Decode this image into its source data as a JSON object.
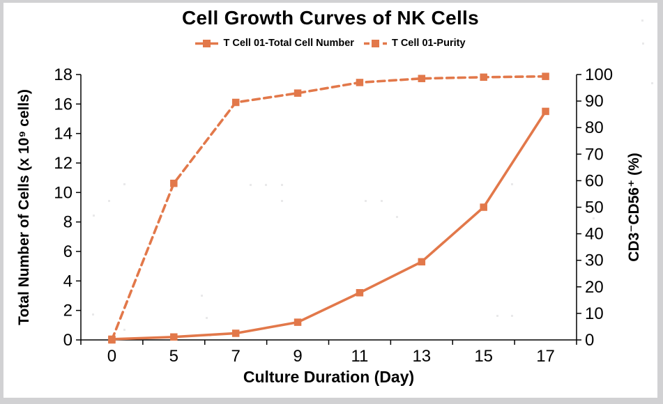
{
  "window": {
    "frame_color": "#d1d1d3",
    "background": "#ffffff"
  },
  "chart_data": {
    "type": "line",
    "title": "Cell Growth Curves of NK Cells",
    "grid": false,
    "legend_position": "top",
    "categories": [
      "0",
      "5",
      "7",
      "9",
      "11",
      "13",
      "15",
      "17"
    ],
    "x_axis": {
      "label": "Culture Duration (Day)",
      "tick_placement": "between-categories"
    },
    "left_axis": {
      "label": "Total Number of Cells (x 10⁹ cells)",
      "min": 0,
      "max": 18,
      "ticks": [
        0,
        2,
        4,
        6,
        8,
        10,
        12,
        14,
        16,
        18
      ]
    },
    "right_axis": {
      "label": "CD3⁻CD56⁺ (%)",
      "min": 0,
      "max": 100,
      "ticks": [
        0,
        10,
        20,
        30,
        40,
        50,
        60,
        70,
        80,
        90,
        100
      ]
    },
    "series": [
      {
        "name": "T Cell 01-Total Cell Number",
        "axis": "left",
        "line_style": "solid",
        "marker": "square",
        "color": "#e2784a",
        "values": [
          0.05,
          0.2,
          0.45,
          1.2,
          3.2,
          5.3,
          9.0,
          15.5
        ]
      },
      {
        "name": "T Cell 01-Purity",
        "axis": "right",
        "line_style": "dashed",
        "marker": "square",
        "color": "#e2784a",
        "values": [
          0,
          59,
          89.5,
          93,
          97,
          98.5,
          99,
          99.3
        ]
      }
    ]
  }
}
